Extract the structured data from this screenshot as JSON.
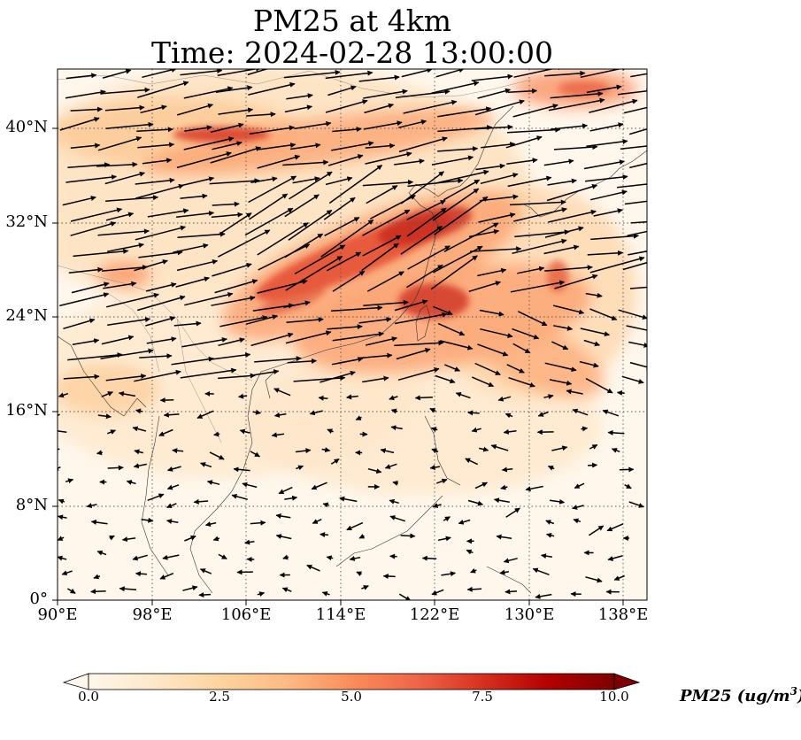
{
  "map": {
    "title_line1": "PM25 at 4km",
    "title_line2": "Time: 2024-02-28 13:00:00",
    "variable": "PM25",
    "level": "4km",
    "lon_range": [
      90,
      140
    ],
    "lat_range": [
      0,
      45
    ],
    "y_ticks": [
      "40°N",
      "32°N",
      "24°N",
      "16°N",
      "8°N",
      "0°"
    ],
    "x_ticks": [
      "90°E",
      "98°E",
      "106°E",
      "114°E",
      "122°E",
      "130°E",
      "138°E"
    ],
    "gridlines": "dotted",
    "wind_vectors": "black arrows, predominantly westerly to west-southwesterly north of 18°N; weak and variable south of 18°N"
  },
  "colorbar": {
    "label": "PM25 (ug/m",
    "label_sup": "3",
    "label_tail": ")",
    "colormap": "OrRd",
    "min": 0.0,
    "max": 10.0,
    "extend": "both",
    "ticks": [
      "0.0",
      "2.5",
      "5.0",
      "7.5",
      "10.0"
    ],
    "colors": [
      "#fff7ec",
      "#fee8c8",
      "#fdd49e",
      "#fdbb84",
      "#fc8d59",
      "#ef6548",
      "#d7301f",
      "#b30000",
      "#7f0000"
    ]
  }
}
